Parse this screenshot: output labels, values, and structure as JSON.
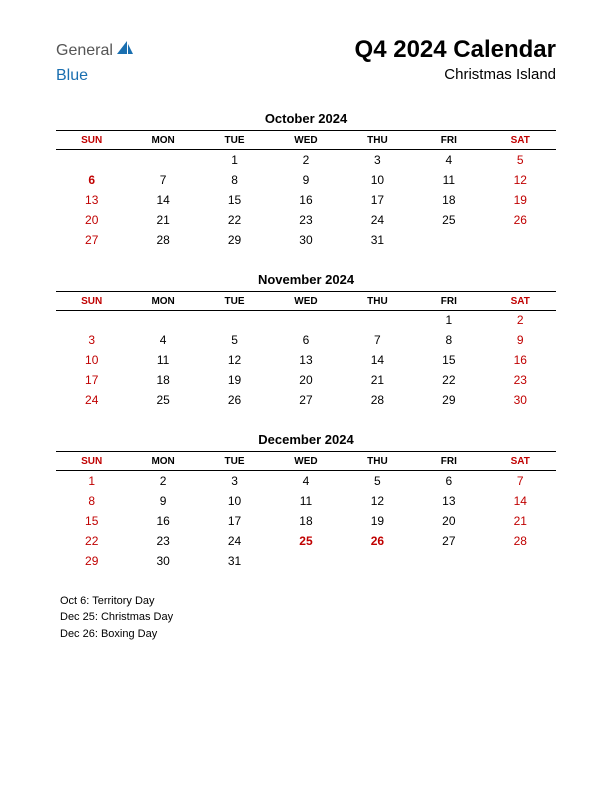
{
  "colors": {
    "weekend": "#c00000",
    "weekday": "#000000",
    "holiday": "#c00000",
    "text": "#000000",
    "background": "#ffffff",
    "logo_gray": "#6a6a6a",
    "logo_blue": "#1a6fb0",
    "logo_shape": "#1a6fb0"
  },
  "logo": {
    "text1": "General",
    "text2": "Blue"
  },
  "title": "Q4 2024 Calendar",
  "subtitle": "Christmas Island",
  "day_headers": [
    "SUN",
    "MON",
    "TUE",
    "WED",
    "THU",
    "FRI",
    "SAT"
  ],
  "weekend_cols": [
    0,
    6
  ],
  "months": [
    {
      "name": "October 2024",
      "weeks": [
        [
          "",
          "",
          "1",
          "2",
          "3",
          "4",
          "5"
        ],
        [
          "6",
          "7",
          "8",
          "9",
          "10",
          "11",
          "12"
        ],
        [
          "13",
          "14",
          "15",
          "16",
          "17",
          "18",
          "19"
        ],
        [
          "20",
          "21",
          "22",
          "23",
          "24",
          "25",
          "26"
        ],
        [
          "27",
          "28",
          "29",
          "30",
          "31",
          "",
          ""
        ]
      ],
      "holidays": [
        [
          1,
          0
        ]
      ]
    },
    {
      "name": "November 2024",
      "weeks": [
        [
          "",
          "",
          "",
          "",
          "",
          "1",
          "2"
        ],
        [
          "3",
          "4",
          "5",
          "6",
          "7",
          "8",
          "9"
        ],
        [
          "10",
          "11",
          "12",
          "13",
          "14",
          "15",
          "16"
        ],
        [
          "17",
          "18",
          "19",
          "20",
          "21",
          "22",
          "23"
        ],
        [
          "24",
          "25",
          "26",
          "27",
          "28",
          "29",
          "30"
        ]
      ],
      "holidays": []
    },
    {
      "name": "December 2024",
      "weeks": [
        [
          "1",
          "2",
          "3",
          "4",
          "5",
          "6",
          "7"
        ],
        [
          "8",
          "9",
          "10",
          "11",
          "12",
          "13",
          "14"
        ],
        [
          "15",
          "16",
          "17",
          "18",
          "19",
          "20",
          "21"
        ],
        [
          "22",
          "23",
          "24",
          "25",
          "26",
          "27",
          "28"
        ],
        [
          "29",
          "30",
          "31",
          "",
          "",
          "",
          ""
        ]
      ],
      "holidays": [
        [
          3,
          3
        ],
        [
          3,
          4
        ]
      ]
    }
  ],
  "holiday_list": [
    "Oct 6: Territory Day",
    "Dec 25: Christmas Day",
    "Dec 26: Boxing Day"
  ]
}
